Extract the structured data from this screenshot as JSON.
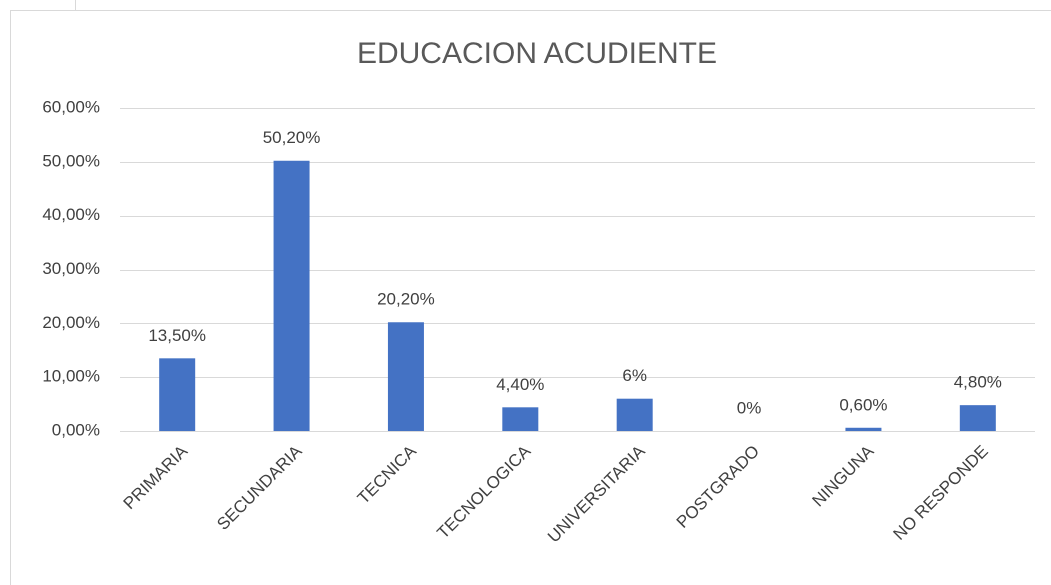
{
  "chart_data": {
    "type": "bar",
    "title": "EDUCACION ACUDIENTE",
    "categories": [
      "PRIMARIA",
      "SECUNDARIA",
      "TECNICA",
      "TECNOLOGICA",
      "UNIVERSITARIA",
      "POSTGRADO",
      "NINGUNA",
      "NO RESPONDE"
    ],
    "values": [
      13.5,
      50.2,
      20.2,
      4.4,
      6,
      0,
      0.6,
      4.8
    ],
    "value_labels": [
      "13,50%",
      "50,20%",
      "20,20%",
      "4,40%",
      "6%",
      "0%",
      "0,60%",
      "4,80%"
    ],
    "color": "#4472c4",
    "ylim": [
      0,
      60
    ],
    "yticks": [
      {
        "value": 0,
        "label": "0,00%"
      },
      {
        "value": 10,
        "label": "10,00%"
      },
      {
        "value": 20,
        "label": "20,00%"
      },
      {
        "value": 30,
        "label": "30,00%"
      },
      {
        "value": 40,
        "label": "40,00%"
      },
      {
        "value": 50,
        "label": "50,00%"
      },
      {
        "value": 60,
        "label": "60,00%"
      }
    ],
    "grid": true
  }
}
